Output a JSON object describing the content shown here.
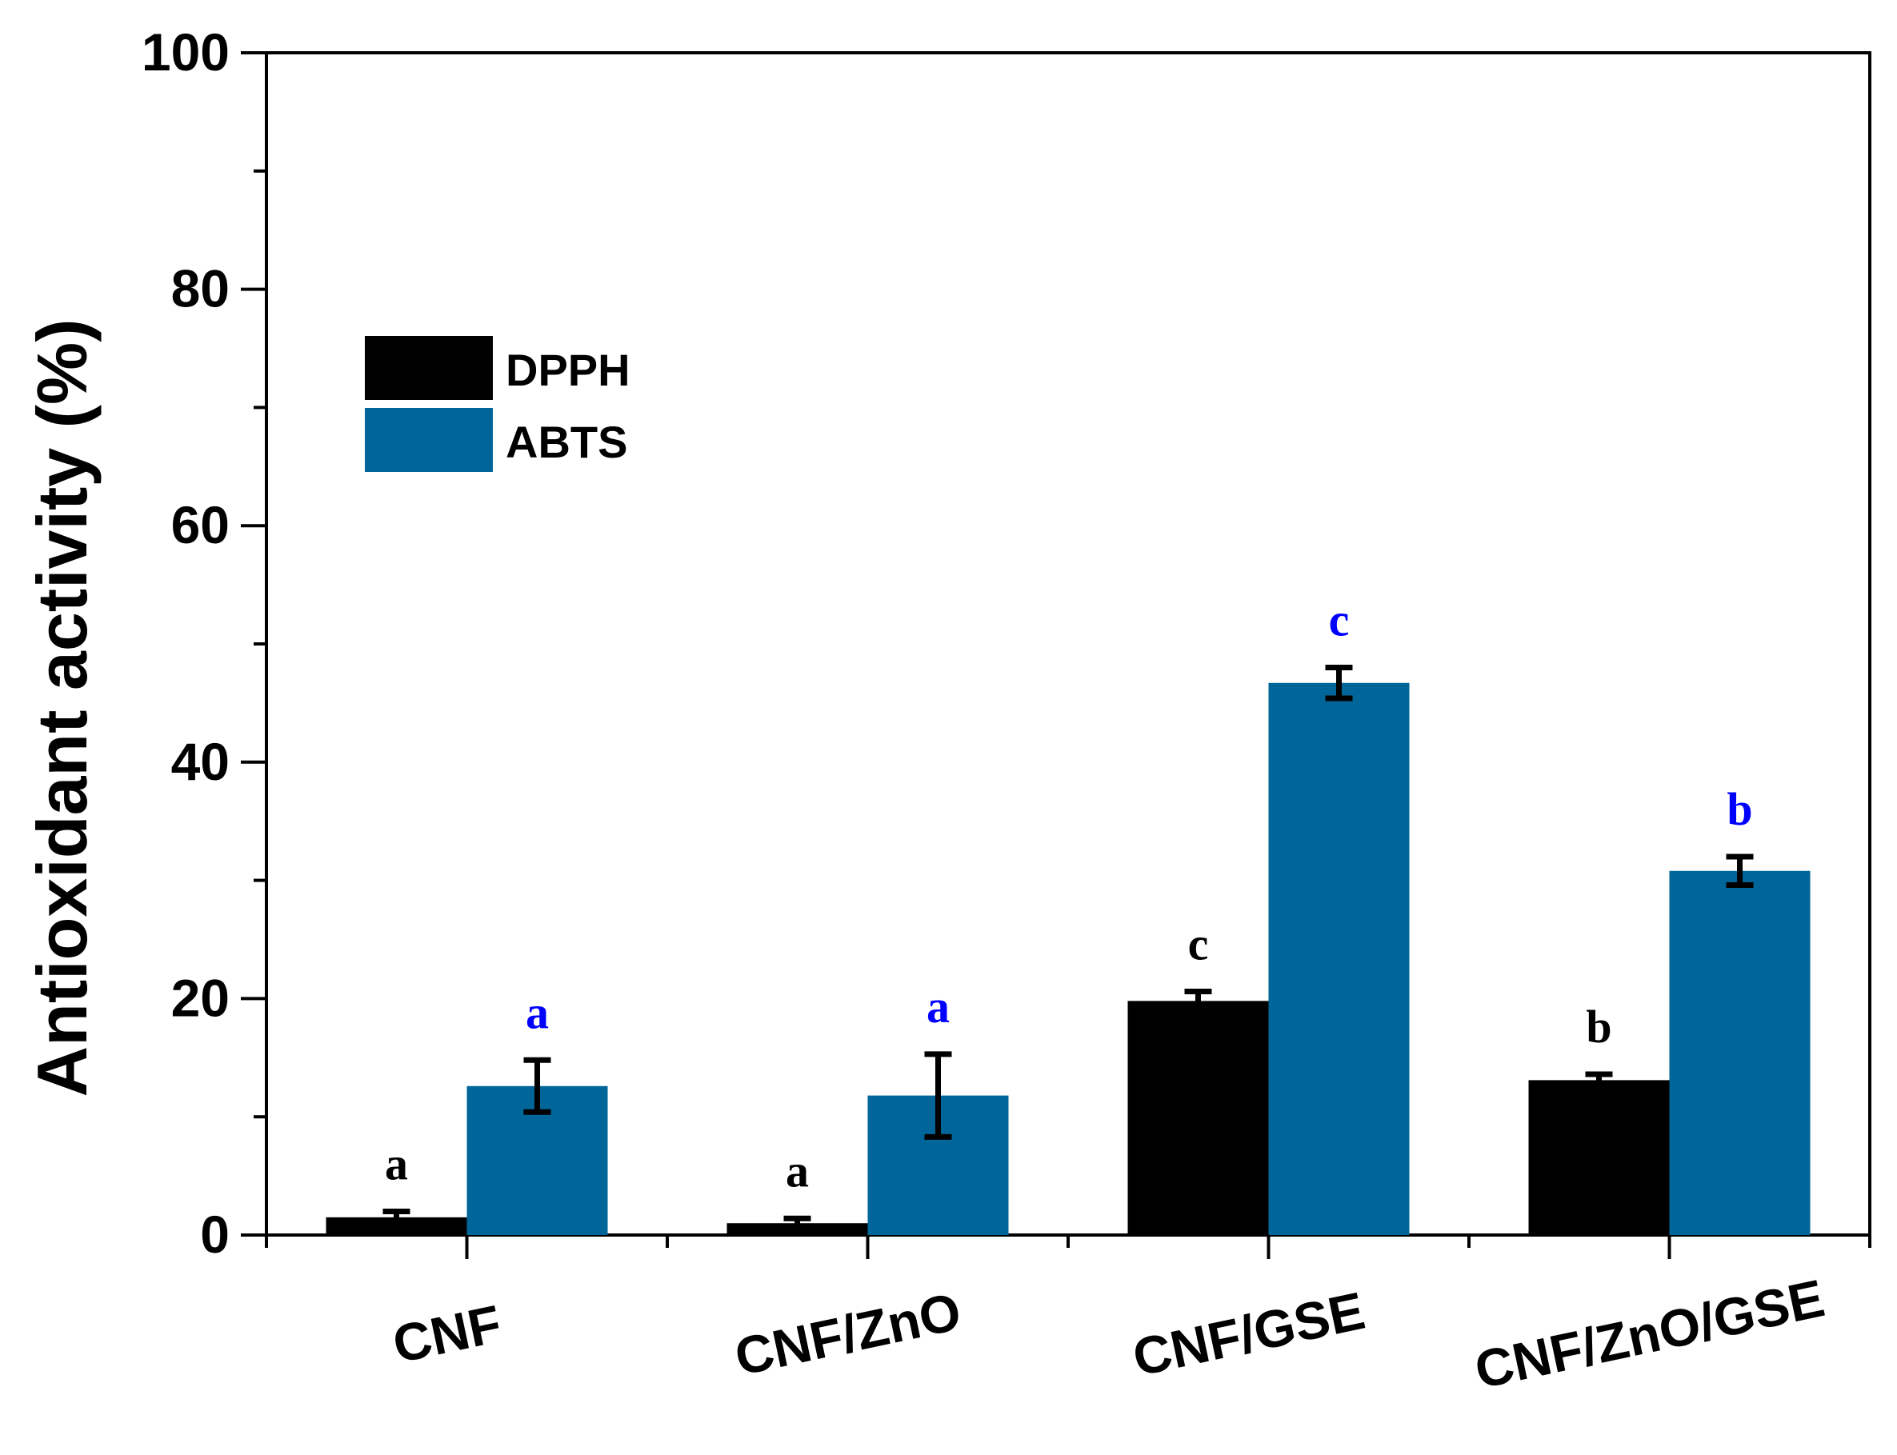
{
  "chart_data": {
    "type": "bar",
    "title": "",
    "xlabel": "",
    "ylabel": "Antioxidant activity (%)",
    "ylim": [
      0,
      100
    ],
    "yticks": [
      0,
      20,
      40,
      60,
      80,
      100
    ],
    "categories": [
      "CNF",
      "CNF/ZnO",
      "CNF/GSE",
      "CNF/ZnO/GSE"
    ],
    "legend_position": "top-left",
    "series": [
      {
        "name": "DPPH",
        "color": "#000000",
        "label_color": "#000000",
        "values": [
          1.5,
          1.0,
          19.8,
          13.1
        ],
        "errors": [
          0.5,
          0.4,
          0.8,
          0.5
        ],
        "significance": [
          "a",
          "a",
          "c",
          "b"
        ]
      },
      {
        "name": "ABTS",
        "color": "#006699",
        "label_color": "#0000ff",
        "values": [
          12.6,
          11.8,
          46.7,
          30.8
        ],
        "errors": [
          2.2,
          3.5,
          1.3,
          1.2
        ],
        "significance": [
          "a",
          "a",
          "c",
          "b"
        ]
      }
    ]
  }
}
